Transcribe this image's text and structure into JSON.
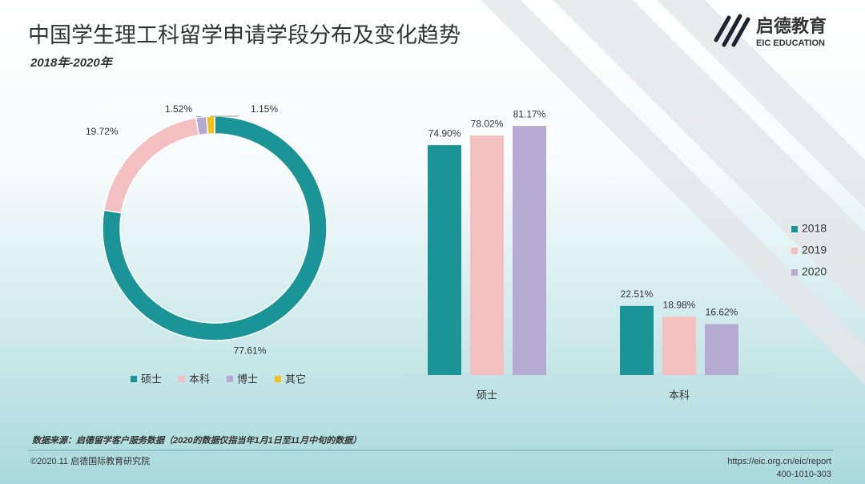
{
  "title": "中国学生理工科留学申请学段分布及变化趋势",
  "subtitle": "2018年-2020年",
  "logo": {
    "name": "启德教育",
    "name_en": "EIC EDUCATION"
  },
  "source": "数据来源：启德留学客户服务数据（2020的数据仅指当年1月1日至11月中旬的数据）",
  "footer": {
    "copyright": "©2020.11 启德国际教育研究院",
    "url": "https://eic.org.cn/eic/report",
    "phone": "400-1010-303"
  },
  "chart_data": [
    {
      "type": "donut",
      "categories": [
        "硕士",
        "本科",
        "博士",
        "其它"
      ],
      "values": [
        77.61,
        19.72,
        1.52,
        1.15
      ],
      "value_labels": [
        "77.61%",
        "19.72%",
        "1.52%",
        "1.15%"
      ],
      "colors": [
        "#1a9496",
        "#f4bfc1",
        "#b4aad2",
        "#f2c11b"
      ],
      "legend": "bottom"
    },
    {
      "type": "bar",
      "categories": [
        "硕士",
        "本科"
      ],
      "series": [
        {
          "name": "2018",
          "color": "#1a9496",
          "values": [
            74.9,
            22.51
          ],
          "value_labels": [
            "74.90%",
            "22.51%"
          ]
        },
        {
          "name": "2019",
          "color": "#f4bfc1",
          "values": [
            78.02,
            18.98
          ],
          "value_labels": [
            "78.02%",
            "18.98%"
          ]
        },
        {
          "name": "2020",
          "color": "#b4aad2",
          "values": [
            81.17,
            16.62
          ],
          "value_labels": [
            "81.17%",
            "16.62%"
          ]
        }
      ],
      "legend": "right"
    }
  ]
}
